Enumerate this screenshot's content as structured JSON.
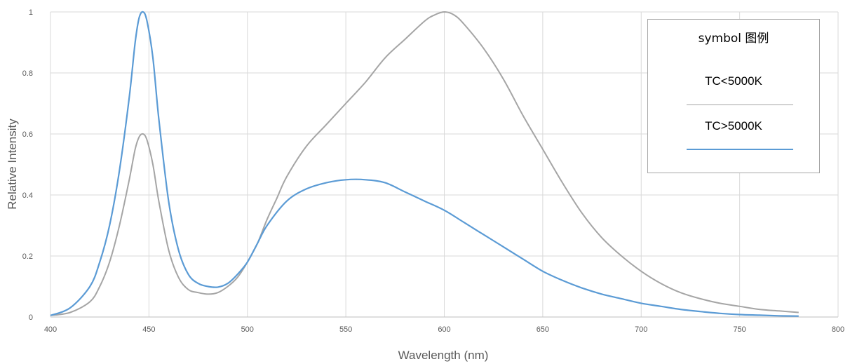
{
  "chart_data": {
    "type": "line",
    "title": "",
    "xlabel": "Wavelength (nm)",
    "ylabel": "Relative Intensity",
    "xlim": [
      400,
      800
    ],
    "ylim": [
      0,
      1
    ],
    "xticks": [
      "400",
      "450",
      "500",
      "550",
      "600",
      "650",
      "700",
      "750",
      "800"
    ],
    "yticks": [
      "0",
      "0.2",
      "0.4",
      "0.6",
      "0.8",
      "1"
    ],
    "grid": true,
    "legend": {
      "title": "symbol 图例",
      "placement": "top-right"
    },
    "series": [
      {
        "name": "TC<5000K",
        "color": "#a5a5a5",
        "x": [
          400,
          410,
          420,
          425,
          430,
          435,
          440,
          443,
          445,
          447,
          449,
          452,
          455,
          460,
          465,
          470,
          475,
          480,
          485,
          490,
          495,
          500,
          505,
          510,
          515,
          520,
          530,
          540,
          550,
          560,
          570,
          580,
          590,
          595,
          600,
          605,
          610,
          620,
          630,
          640,
          650,
          660,
          670,
          680,
          690,
          700,
          710,
          720,
          730,
          740,
          750,
          760,
          770,
          780
        ],
        "y": [
          0.005,
          0.015,
          0.05,
          0.1,
          0.18,
          0.3,
          0.45,
          0.55,
          0.59,
          0.6,
          0.58,
          0.5,
          0.38,
          0.22,
          0.13,
          0.09,
          0.08,
          0.075,
          0.08,
          0.1,
          0.13,
          0.18,
          0.24,
          0.32,
          0.39,
          0.46,
          0.56,
          0.63,
          0.7,
          0.77,
          0.85,
          0.91,
          0.97,
          0.99,
          1.0,
          0.99,
          0.96,
          0.88,
          0.78,
          0.66,
          0.55,
          0.44,
          0.34,
          0.26,
          0.2,
          0.15,
          0.11,
          0.08,
          0.06,
          0.045,
          0.035,
          0.025,
          0.02,
          0.015
        ]
      },
      {
        "name": "TC>5000K",
        "color": "#5b9bd5",
        "x": [
          400,
          410,
          420,
          425,
          430,
          435,
          440,
          443,
          445,
          447,
          449,
          452,
          455,
          460,
          465,
          470,
          475,
          480,
          485,
          490,
          495,
          500,
          505,
          510,
          520,
          530,
          540,
          550,
          560,
          570,
          580,
          590,
          600,
          610,
          620,
          630,
          640,
          650,
          660,
          670,
          680,
          690,
          700,
          710,
          720,
          730,
          740,
          750,
          760,
          770,
          780
        ],
        "y": [
          0.005,
          0.03,
          0.1,
          0.18,
          0.3,
          0.48,
          0.72,
          0.9,
          0.98,
          1.0,
          0.97,
          0.85,
          0.65,
          0.38,
          0.22,
          0.14,
          0.11,
          0.1,
          0.098,
          0.11,
          0.14,
          0.18,
          0.24,
          0.3,
          0.38,
          0.42,
          0.44,
          0.45,
          0.45,
          0.44,
          0.41,
          0.38,
          0.35,
          0.31,
          0.27,
          0.23,
          0.19,
          0.15,
          0.12,
          0.095,
          0.075,
          0.06,
          0.045,
          0.035,
          0.025,
          0.018,
          0.012,
          0.008,
          0.006,
          0.004,
          0.003
        ]
      }
    ]
  }
}
